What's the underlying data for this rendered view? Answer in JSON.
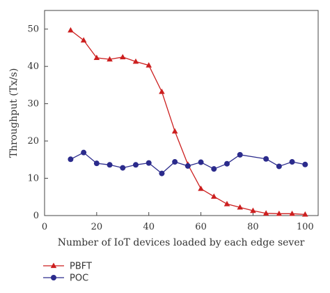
{
  "chart_data": {
    "type": "line",
    "xlabel": "Number of IoT devices loaded by each edge sever",
    "ylabel": "Throughput (Tx/s)",
    "xlim": [
      0,
      105
    ],
    "ylim": [
      0,
      55
    ],
    "xticks": [
      0,
      20,
      40,
      60,
      80,
      100
    ],
    "yticks": [
      0,
      10,
      20,
      30,
      40,
      50
    ],
    "grid": false,
    "legend_position": "bottom-left",
    "series": [
      {
        "name": "PBFT",
        "color": "#cc1f1f",
        "marker": "triangle",
        "x": [
          10,
          15,
          20,
          25,
          30,
          35,
          40,
          45,
          50,
          55,
          60,
          65,
          70,
          75,
          80,
          85,
          90,
          95,
          100
        ],
        "y": [
          49.7,
          47.0,
          42.3,
          41.9,
          42.5,
          41.3,
          40.3,
          33.2,
          22.6,
          13.7,
          7.2,
          5.1,
          3.1,
          2.2,
          1.3,
          0.6,
          0.5,
          0.5,
          0.3
        ]
      },
      {
        "name": "POC",
        "color": "#2b2b8c",
        "marker": "circle",
        "x": [
          10,
          15,
          20,
          25,
          30,
          35,
          40,
          45,
          50,
          55,
          60,
          65,
          70,
          75,
          85,
          90,
          95,
          100
        ],
        "y": [
          15.1,
          16.9,
          14.0,
          13.6,
          12.8,
          13.6,
          14.1,
          11.3,
          14.4,
          13.3,
          14.3,
          12.5,
          13.9,
          16.3,
          15.2,
          13.2,
          14.4,
          13.7
        ]
      }
    ]
  }
}
